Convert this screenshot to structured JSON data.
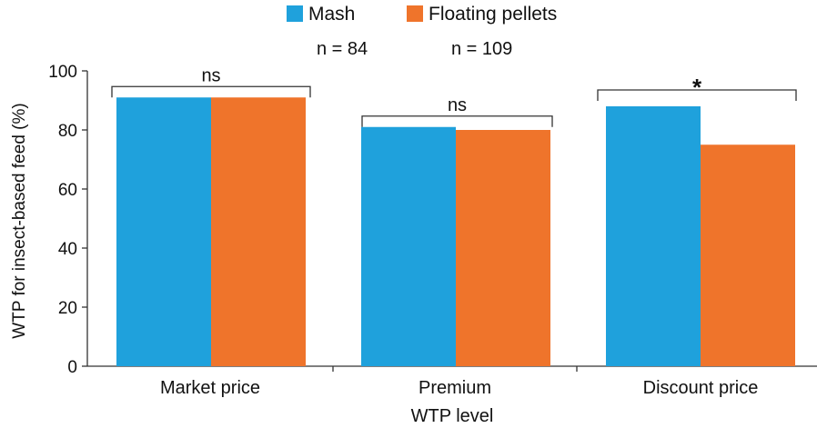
{
  "chart_data": {
    "type": "bar",
    "categories": [
      "Market price",
      "Premium",
      "Discount price"
    ],
    "series": [
      {
        "name": "Mash",
        "values": [
          91,
          81,
          88
        ],
        "color": "#1fa1dc"
      },
      {
        "name": "Floating pellets",
        "values": [
          91,
          80,
          75
        ],
        "color": "#ef742b"
      }
    ],
    "xlabel": "WTP level",
    "ylabel": "WTP for insect-based feed (%)",
    "ylim": [
      0,
      100
    ],
    "yticks": [
      0,
      20,
      40,
      60,
      80,
      100
    ],
    "legend_position": "top-center",
    "sample_sizes": [
      "n = 84",
      "n = 109"
    ],
    "significance": [
      "ns",
      "ns",
      "*"
    ],
    "grid": false
  }
}
